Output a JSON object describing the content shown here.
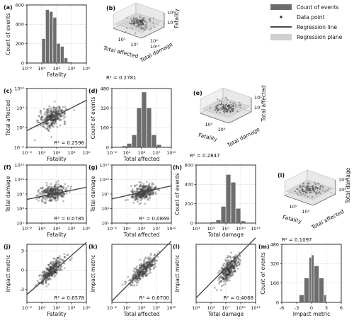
{
  "legend": {
    "items": [
      {
        "key": "bar",
        "label": "Count of events"
      },
      {
        "key": "point",
        "label": "Data point"
      },
      {
        "key": "line",
        "label": "Regression line"
      },
      {
        "key": "plane",
        "label": "Regression plane"
      }
    ]
  },
  "colors": {
    "bar": "#6d6d6d",
    "point": "#3a3a3a",
    "line": "#4a4a4a",
    "plane": "#cfcfcf",
    "grid": "#bdbdbd"
  },
  "chart_data": [
    {
      "id": "a",
      "panel": "(a)",
      "type": "bar",
      "xlabel": "Fatality",
      "ylabel": "Count of events",
      "xscale": "log",
      "xlim": [
        -2,
        6
      ],
      "ylim": [
        0,
        600
      ],
      "xticks": [
        "10⁻²",
        "10⁰",
        "10²",
        "10⁴",
        "10⁶"
      ],
      "yticks": [
        "0",
        "200",
        "400",
        "600"
      ],
      "bins_log10": [
        [
          -0.5,
          0
        ],
        [
          0,
          0.5
        ],
        [
          0.5,
          1
        ],
        [
          1,
          1.5
        ],
        [
          1.5,
          2
        ],
        [
          2,
          2.5
        ],
        [
          2.5,
          3
        ],
        [
          3,
          3.5
        ],
        [
          3.5,
          4
        ]
      ],
      "values": [
        0,
        250,
        550,
        530,
        470,
        200,
        170,
        50,
        10
      ]
    },
    {
      "id": "b",
      "panel": "(b)",
      "type": "scatter3d",
      "labels": [
        "Total affected",
        "Total damage",
        "Fatality"
      ],
      "ticks": [
        "10¹",
        "10⁷",
        "10⁴",
        "10¹⁰",
        "10⁰",
        "10⁴"
      ],
      "r2": "R² = 0.2781"
    },
    {
      "id": "c",
      "panel": "(c)",
      "type": "scatter",
      "xlabel": "Fatality",
      "ylabel": "Total affected",
      "xlim": [
        -2,
        6
      ],
      "ylim": [
        -2,
        10
      ],
      "xticks": [
        "10⁻²",
        "10⁰",
        "10²",
        "10⁴",
        "10⁶"
      ],
      "yticks": [
        "10⁻²",
        "10²",
        "10⁴",
        "10¹⁰"
      ],
      "cloud": {
        "cx": 1.5,
        "cy": 4.2,
        "sx": 0.9,
        "sy": 1.1,
        "rho": 0.45,
        "n": 320
      },
      "fit": [
        [
          -2,
          1.4
        ],
        [
          6,
          7.6
        ]
      ],
      "r2": "R² = 0.2596"
    },
    {
      "id": "d",
      "panel": "(d)",
      "type": "bar",
      "xlabel": "Total affected",
      "ylabel": "Count of events",
      "xscale": "log",
      "xlim": [
        -2,
        10
      ],
      "ylim": [
        0,
        480
      ],
      "xticks": [
        "10⁻²",
        "10¹",
        "10⁴",
        "10⁷",
        "10¹⁰"
      ],
      "yticks": [
        "0",
        "160",
        "320",
        "480"
      ],
      "bins_log10": [
        [
          0,
          1
        ],
        [
          1,
          2
        ],
        [
          2,
          3
        ],
        [
          3,
          4
        ],
        [
          4,
          5
        ],
        [
          5,
          6
        ],
        [
          6,
          7
        ],
        [
          7,
          8
        ]
      ],
      "values": [
        10,
        30,
        100,
        320,
        450,
        320,
        100,
        20
      ]
    },
    {
      "id": "e",
      "panel": "(e)",
      "type": "scatter3d",
      "labels": [
        "Fatality",
        "Total damage",
        "Total affected"
      ],
      "ticks": [
        "10⁰",
        "10⁴",
        "10⁷",
        "10¹"
      ],
      "r2": "R² = 0.2847"
    },
    {
      "id": "f",
      "panel": "(f)",
      "type": "scatter",
      "xlabel": "Fatality",
      "ylabel": "Total damage",
      "xlim": [
        -2,
        6
      ],
      "ylim": [
        1,
        13
      ],
      "xticks": [
        "10⁻²",
        "10⁰",
        "10²",
        "10⁴",
        "10⁶"
      ],
      "yticks": [
        "10¹",
        "10⁴",
        "10⁷",
        "10¹⁰",
        "10¹³"
      ],
      "cloud": {
        "cx": 1.5,
        "cy": 7.3,
        "sx": 0.9,
        "sy": 0.8,
        "rho": 0.25,
        "n": 320
      },
      "fit": [
        [
          -2,
          5.9
        ],
        [
          6,
          8.4
        ]
      ],
      "r2": "R² = 0.0785"
    },
    {
      "id": "g",
      "panel": "(g)",
      "type": "scatter",
      "xlabel": "Total affected",
      "ylabel": "Total damage",
      "xlim": [
        -2,
        10
      ],
      "ylim": [
        1,
        13
      ],
      "xticks": [
        "10⁻²",
        "10¹",
        "10⁴",
        "10⁷",
        "10¹⁰"
      ],
      "yticks": [
        "10¹",
        "10⁴",
        "10⁷",
        "10¹⁰",
        "10¹³"
      ],
      "cloud": {
        "cx": 4.3,
        "cy": 7.3,
        "sx": 1.2,
        "sy": 0.8,
        "rho": 0.3,
        "n": 320
      },
      "fit": [
        [
          -2,
          6
        ],
        [
          10,
          8.7
        ]
      ],
      "r2": "R² = 0.0869"
    },
    {
      "id": "h",
      "panel": "(h)",
      "type": "bar",
      "xlabel": "Total damage",
      "ylabel": "Count of events",
      "xscale": "log",
      "xlim": [
        1,
        13
      ],
      "ylim": [
        0,
        600
      ],
      "xticks": [
        "10¹",
        "10⁴",
        "10⁷",
        "10¹⁰",
        "10¹³"
      ],
      "yticks": [
        "0",
        "200",
        "400",
        "600"
      ],
      "bins_log10": [
        [
          4,
          5
        ],
        [
          5,
          6
        ],
        [
          6,
          7
        ],
        [
          7,
          8
        ],
        [
          8,
          9
        ],
        [
          9,
          10
        ],
        [
          10,
          11
        ]
      ],
      "values": [
        10,
        30,
        170,
        500,
        420,
        150,
        20
      ]
    },
    {
      "id": "i",
      "panel": "(i)",
      "type": "scatter3d",
      "labels": [
        "Fatality",
        "Total affected",
        "Total damage"
      ],
      "ticks": [
        "10⁰",
        "10⁴",
        "10⁴",
        "10¹⁰"
      ],
      "r2": "R² = 0.1097"
    },
    {
      "id": "j",
      "panel": "(j)",
      "type": "scatter",
      "xlabel": "Fatality",
      "ylabel": "Impact metric",
      "xlim": [
        -2,
        6
      ],
      "ylim": [
        -5,
        4
      ],
      "ytick_values": [
        "-3",
        "0",
        "3"
      ],
      "xticks": [
        "10⁻²",
        "10⁰",
        "10²",
        "10⁴",
        "10⁶"
      ],
      "cloud": {
        "cx": 1.4,
        "cy": 0,
        "sx": 0.9,
        "sy": 1.05,
        "rho": 0.82,
        "n": 320
      },
      "fit": [
        [
          -2,
          -3.8
        ],
        [
          6,
          4.3
        ]
      ],
      "r2": "R² = 0.6578"
    },
    {
      "id": "k",
      "panel": "(k)",
      "type": "scatter",
      "xlabel": "Total affected",
      "ylabel": "Impact metric",
      "xlim": [
        -2,
        10
      ],
      "ylim": [
        -5,
        4
      ],
      "xticks": [
        "10⁻²",
        "10¹",
        "10⁴",
        "10⁷",
        "10¹⁰"
      ],
      "cloud": {
        "cx": 4.3,
        "cy": 0,
        "sx": 1.3,
        "sy": 1.05,
        "rho": 0.82,
        "n": 320
      },
      "fit": [
        [
          -2,
          -4.8
        ],
        [
          10,
          4.5
        ]
      ],
      "r2": "R² = 0.6700"
    },
    {
      "id": "l",
      "panel": "(l)",
      "type": "scatter",
      "xlabel": "Total damage",
      "ylabel": "Impact metric",
      "xlim": [
        1,
        13
      ],
      "ylim": [
        -5,
        4
      ],
      "xticks": [
        "10¹",
        "10⁴",
        "10⁷",
        "10¹⁰",
        "10¹³"
      ],
      "cloud": {
        "cx": 7.5,
        "cy": 0,
        "sx": 1.0,
        "sy": 1.05,
        "rho": 0.64,
        "n": 320
      },
      "fit": [
        [
          1,
          -4.3
        ],
        [
          13,
          5
        ]
      ],
      "r2": "R² = 0.4068"
    },
    {
      "id": "m",
      "panel": "(m)",
      "type": "bar",
      "xlabel": "Impact metric",
      "ylabel": "Count of events",
      "xlim": [
        -6,
        6
      ],
      "ylim": [
        0,
        480
      ],
      "xticks": [
        "-6",
        "-3",
        "0",
        "3",
        "6"
      ],
      "yticks": [
        "0",
        "160",
        "320",
        "480"
      ],
      "bins": [
        [
          -2.5,
          -1.5
        ],
        [
          -1.5,
          -0.5
        ],
        [
          -0.5,
          0
        ],
        [
          0,
          0.5
        ],
        [
          0.5,
          1.5
        ],
        [
          1.5,
          2.5
        ],
        [
          2.5,
          3
        ]
      ],
      "values": [
        60,
        200,
        370,
        390,
        300,
        200,
        60
      ]
    }
  ]
}
